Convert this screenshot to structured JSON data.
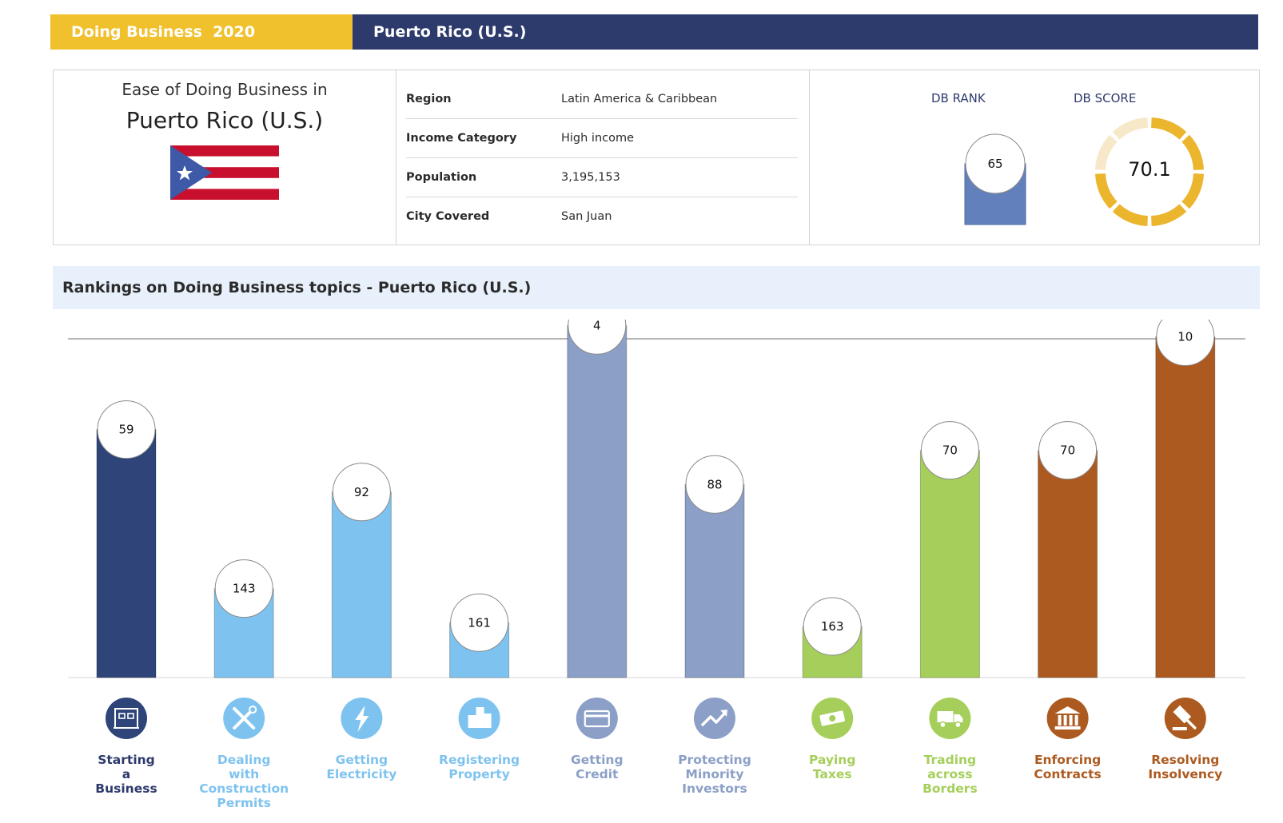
{
  "header": {
    "left_title": "Doing Business  2020",
    "right_title": "Puerto Rico (U.S.)"
  },
  "overview": {
    "ease_label": "Ease of Doing Business in",
    "country": "Puerto Rico (U.S.)",
    "rows": [
      {
        "key": "Region",
        "value": "Latin America & Caribbean"
      },
      {
        "key": "Income Category",
        "value": "High income"
      },
      {
        "key": "Population",
        "value": "3,195,153"
      },
      {
        "key": "City Covered",
        "value": "San Juan"
      }
    ],
    "db_rank_label": "DB RANK",
    "db_rank": "65",
    "db_score_label": "DB SCORE",
    "db_score": "70.1"
  },
  "rankings": {
    "title": "Rankings on Doing Business topics - Puerto Rico (U.S.)"
  },
  "colors": {
    "navy": "#2d3a6c",
    "gold": "#f0c12d",
    "dark_blue_bar": "#2f4579",
    "light_blue_bar": "#7ec3ef",
    "slate_bar": "#8b9fc7",
    "green_bar": "#a5cf5a",
    "orange_bar": "#ad5a20",
    "rank_bar": "#6281bc"
  },
  "chart_data": {
    "type": "bar",
    "title": "",
    "xlabel": "",
    "ylabel": "",
    "ylim": [
      0,
      190
    ],
    "note": "bar height is inverse of rank (lower rank = taller bar)",
    "categories": [
      {
        "lines": [
          "Starting",
          "a",
          "Business"
        ],
        "rank": 59,
        "color": "#2f4579",
        "label_color": "#2d3a6c",
        "icon": "building-icon"
      },
      {
        "lines": [
          "Dealing",
          "with",
          "Construction",
          "Permits"
        ],
        "rank": 143,
        "color": "#7ec3ef",
        "label_color": "#7ec3ef",
        "icon": "tools-icon"
      },
      {
        "lines": [
          "Getting",
          "Electricity"
        ],
        "rank": 92,
        "color": "#7ec3ef",
        "label_color": "#7ec3ef",
        "icon": "lightning-icon"
      },
      {
        "lines": [
          "Registering",
          "Property"
        ],
        "rank": 161,
        "color": "#7ec3ef",
        "label_color": "#7ec3ef",
        "icon": "property-icon"
      },
      {
        "lines": [
          "Getting",
          "Credit"
        ],
        "rank": 4,
        "color": "#8b9fc7",
        "label_color": "#8b9fc7",
        "icon": "credit-card-icon"
      },
      {
        "lines": [
          "Protecting",
          "Minority",
          "Investors"
        ],
        "rank": 88,
        "color": "#8b9fc7",
        "label_color": "#8b9fc7",
        "icon": "trend-up-icon"
      },
      {
        "lines": [
          "Paying",
          "Taxes"
        ],
        "rank": 163,
        "color": "#a5cf5a",
        "label_color": "#a5cf5a",
        "icon": "money-icon"
      },
      {
        "lines": [
          "Trading",
          "across",
          "Borders"
        ],
        "rank": 70,
        "color": "#a5cf5a",
        "label_color": "#a5cf5a",
        "icon": "truck-icon"
      },
      {
        "lines": [
          "Enforcing",
          "Contracts"
        ],
        "rank": 70,
        "color": "#ad5a20",
        "label_color": "#ad5a20",
        "icon": "courthouse-icon"
      },
      {
        "lines": [
          "Resolving",
          "Insolvency"
        ],
        "rank": 10,
        "color": "#ad5a20",
        "label_color": "#ad5a20",
        "icon": "gavel-icon"
      }
    ]
  }
}
